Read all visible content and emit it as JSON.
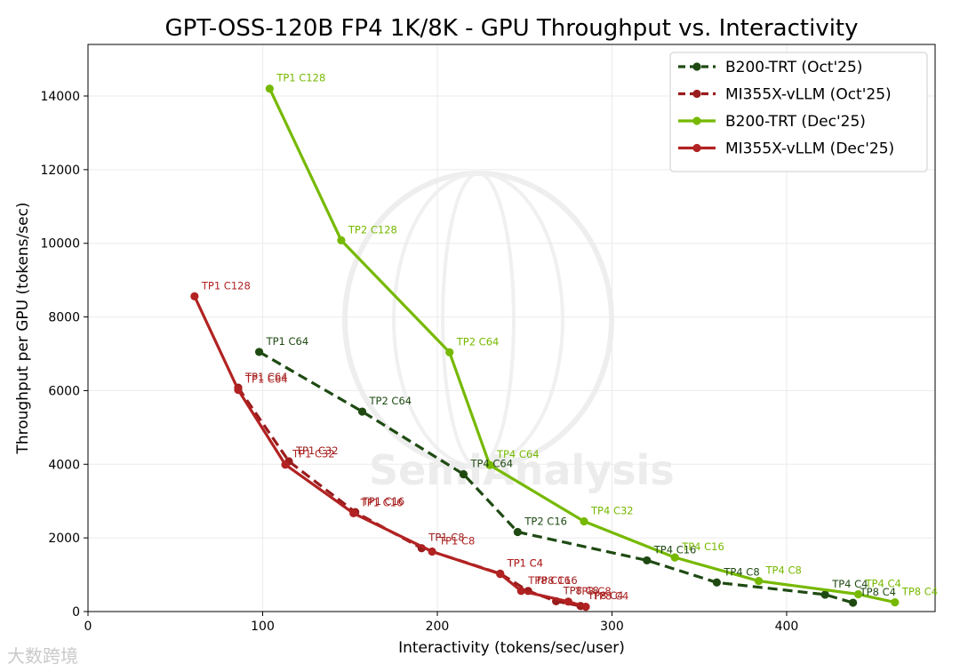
{
  "chart_data": {
    "type": "line",
    "title": "GPT-OSS-120B FP4 1K/8K - GPU Throughput vs. Interactivity",
    "xlabel": "Interactivity (tokens/sec/user)",
    "ylabel": "Throughput per GPU (tokens/sec)",
    "xlim": [
      0,
      485
    ],
    "ylim": [
      0,
      15400
    ],
    "xticks": [
      0,
      100,
      200,
      300,
      400
    ],
    "yticks": [
      0,
      2000,
      4000,
      6000,
      8000,
      10000,
      12000,
      14000
    ],
    "grid": true,
    "legend_position": "top-right",
    "watermark": "SemiAnalysis",
    "series": [
      {
        "name": "B200-TRT (Oct'25)",
        "color": "#1e4a12",
        "dash": "dashed",
        "points": [
          {
            "x": 98,
            "y": 7050,
            "label": "TP1 C64"
          },
          {
            "x": 157,
            "y": 5430,
            "label": "TP2 C64"
          },
          {
            "x": 215,
            "y": 3730,
            "label": "TP4 C64"
          },
          {
            "x": 246,
            "y": 2160,
            "label": "TP2 C16"
          },
          {
            "x": 320,
            "y": 1390,
            "label": "TP4 C16"
          },
          {
            "x": 360,
            "y": 790,
            "label": "TP4 C8"
          },
          {
            "x": 422,
            "y": 460,
            "label": "TP4 C4"
          },
          {
            "x": 438,
            "y": 240,
            "label": "TP8 C4"
          }
        ]
      },
      {
        "name": "MI355X-vLLM (Oct'25)",
        "color": "#9a1c1c",
        "dash": "dashed",
        "points": [
          {
            "x": 86,
            "y": 6080,
            "label": "TP1 C64"
          },
          {
            "x": 115,
            "y": 4080,
            "label": "TP1 C32"
          },
          {
            "x": 153,
            "y": 2700,
            "label": "TP1 C16"
          },
          {
            "x": 191,
            "y": 1720,
            "label": "TP1 C8"
          },
          {
            "x": 236,
            "y": 1030,
            "label": "TP1 C4"
          },
          {
            "x": 252,
            "y": 560,
            "label": "TP8 C16"
          },
          {
            "x": 268,
            "y": 280,
            "label": "TP8 C8"
          },
          {
            "x": 282,
            "y": 150,
            "label": "TP8 C4"
          }
        ]
      },
      {
        "name": "B200-TRT (Dec'25)",
        "color": "#76b900",
        "dash": "solid",
        "points": [
          {
            "x": 104,
            "y": 14200,
            "label": "TP1 C128"
          },
          {
            "x": 145,
            "y": 10080,
            "label": "TP2 C128"
          },
          {
            "x": 207,
            "y": 7040,
            "label": "TP2 C64"
          },
          {
            "x": 230,
            "y": 3980,
            "label": "TP4 C64"
          },
          {
            "x": 284,
            "y": 2450,
            "label": "TP4 C32"
          },
          {
            "x": 336,
            "y": 1470,
            "label": "TP4 C16"
          },
          {
            "x": 384,
            "y": 830,
            "label": "TP4 C8"
          },
          {
            "x": 441,
            "y": 470,
            "label": "TP4 C4"
          },
          {
            "x": 462,
            "y": 250,
            "label": "TP8 C4"
          }
        ]
      },
      {
        "name": "MI355X-vLLM (Dec'25)",
        "color": "#b22222",
        "dash": "solid",
        "points": [
          {
            "x": 61,
            "y": 8560,
            "label": "TP1 C128"
          },
          {
            "x": 86,
            "y": 6020,
            "label": "TP1 C64"
          },
          {
            "x": 113,
            "y": 3990,
            "label": "TP1 C32"
          },
          {
            "x": 152,
            "y": 2670,
            "label": "TP1 C16"
          },
          {
            "x": 197,
            "y": 1630,
            "label": "TP1 C8"
          },
          {
            "x": 236,
            "y": 1020,
            "label": "TP1 C4"
          },
          {
            "x": 248,
            "y": 560,
            "label": "TP8 C16"
          },
          {
            "x": 275,
            "y": 270,
            "label": "TP8 C8"
          },
          {
            "x": 285,
            "y": 130,
            "label": "TP8 C4"
          }
        ]
      }
    ]
  },
  "footer": {
    "brand": "大数跨境"
  }
}
